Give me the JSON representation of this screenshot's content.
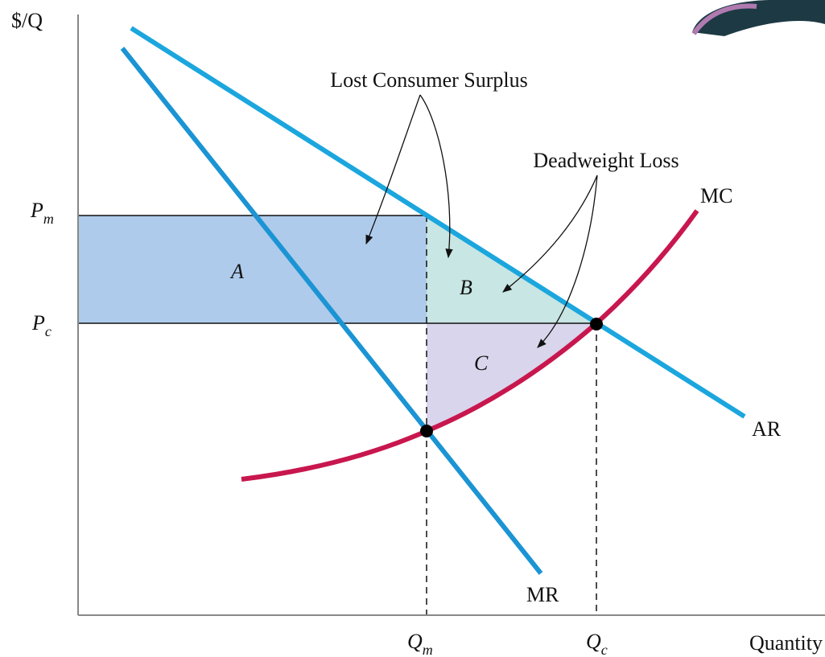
{
  "axes": {
    "y_label": "$/Q",
    "x_label": "Quantity"
  },
  "prices": [
    {
      "base": "P",
      "sub": "m"
    },
    {
      "base": "P",
      "sub": "c"
    }
  ],
  "quantities": [
    {
      "base": "Q",
      "sub": "m"
    },
    {
      "base": "Q",
      "sub": "c"
    }
  ],
  "regions": [
    "A",
    "B",
    "C"
  ],
  "curves": {
    "mc": "MC",
    "ar": "AR",
    "mr": "MR"
  },
  "annotations": {
    "lost_surplus": "Lost Consumer Surplus",
    "deadweight": "Deadweight Loss"
  }
}
